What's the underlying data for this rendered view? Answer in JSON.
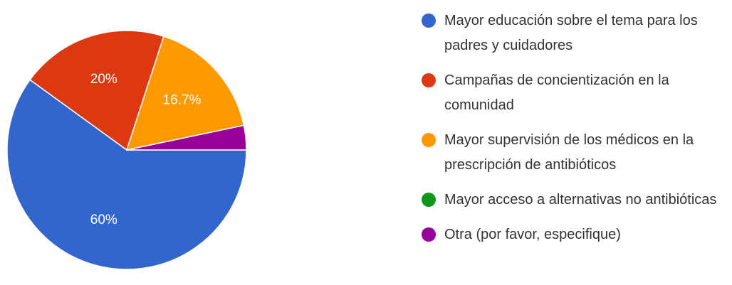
{
  "chart_data": {
    "type": "pie",
    "title": "",
    "slices": [
      {
        "label": "Mayor educación sobre el tema para los padres y cuidadores",
        "value": 60,
        "display": "60%",
        "color": "#3366cc"
      },
      {
        "label": "Campañas de concientización en la comunidad",
        "value": 20,
        "display": "20%",
        "color": "#dc3912"
      },
      {
        "label": "Mayor supervisión de los médicos en la prescripción de antibióticos",
        "value": 16.7,
        "display": "16.7%",
        "color": "#ff9900"
      },
      {
        "label": "Mayor acceso a alternativas no antibióticas",
        "value": 0,
        "display": "",
        "color": "#109618"
      },
      {
        "label": "Otra (por favor, especifique)",
        "value": 3.3,
        "display": "",
        "color": "#990099"
      }
    ],
    "legend_position": "right"
  }
}
